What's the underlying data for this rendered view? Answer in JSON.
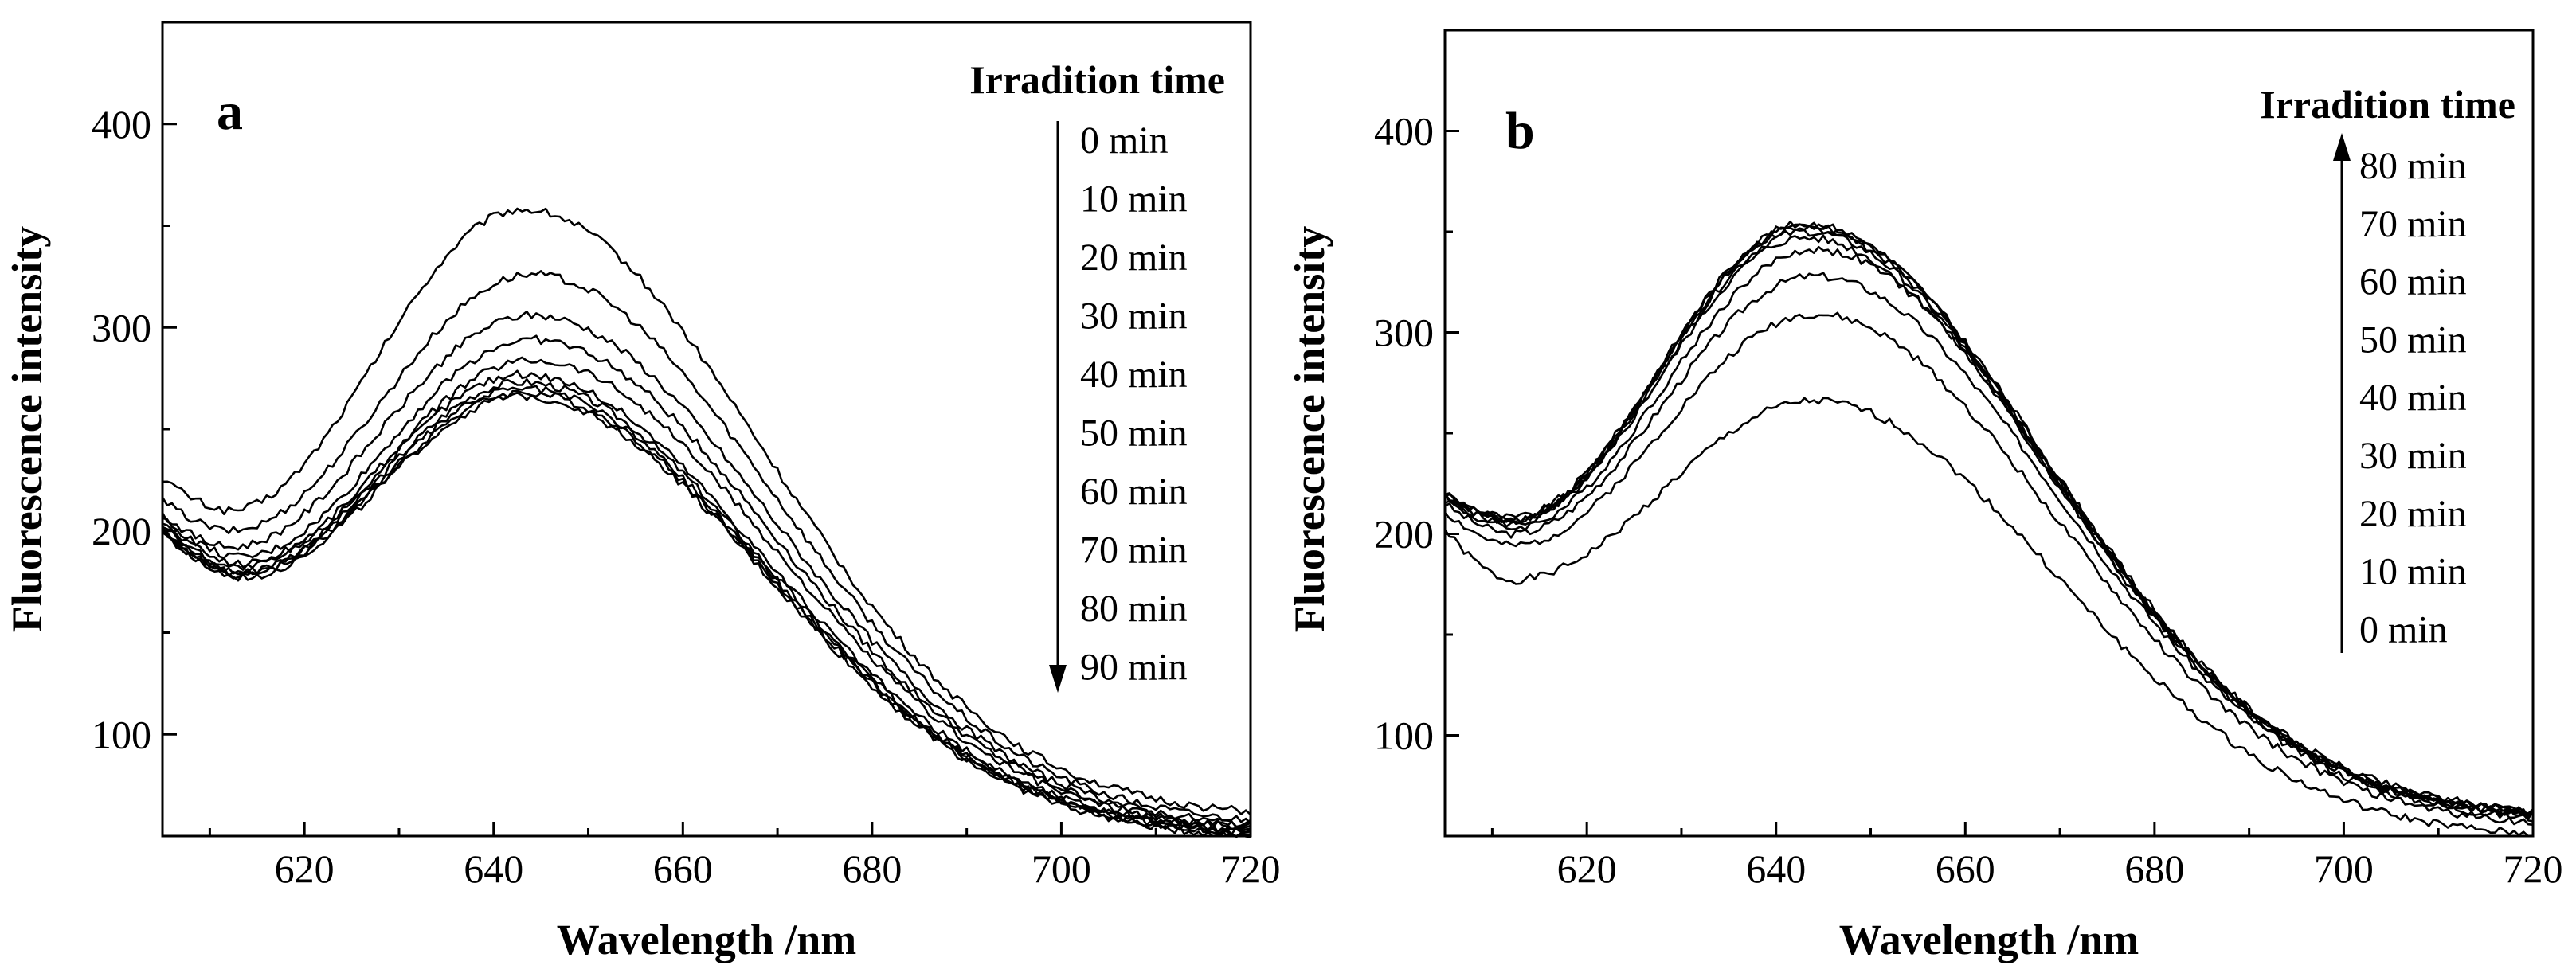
{
  "chart_data": [
    {
      "type": "line",
      "panel_label": "a",
      "xlabel": "Wavelength /nm",
      "ylabel": "Fluorescence intensity",
      "xlim": [
        605,
        720
      ],
      "ylim": [
        50,
        450
      ],
      "xticks": [
        620,
        640,
        660,
        680,
        700,
        720
      ],
      "yticks": [
        100,
        200,
        300,
        400
      ],
      "grid": false,
      "legend": {
        "title": "Irradition time",
        "items": [
          "0 min",
          "10 min",
          "20 min",
          "30 min",
          "40 min",
          "50 min",
          "60 min",
          "70 min",
          "80 min",
          "90 min"
        ],
        "arrow": "down"
      },
      "series": [
        {
          "name": "0 min",
          "peak_x": 643,
          "peak": 358,
          "start": 226,
          "min_x": 612,
          "min": 210,
          "end": 62
        },
        {
          "name": "10 min",
          "peak_x": 644,
          "peak": 326,
          "start": 215,
          "min_x": 612,
          "min": 200,
          "end": 58
        },
        {
          "name": "20 min",
          "peak_x": 644,
          "peak": 306,
          "start": 208,
          "min_x": 612,
          "min": 192,
          "end": 56
        },
        {
          "name": "30 min",
          "peak_x": 644,
          "peak": 294,
          "start": 206,
          "min_x": 613,
          "min": 187,
          "end": 55
        },
        {
          "name": "40 min",
          "peak_x": 644,
          "peak": 284,
          "start": 204,
          "min_x": 613,
          "min": 184,
          "end": 54
        },
        {
          "name": "50 min",
          "peak_x": 643,
          "peak": 277,
          "start": 203,
          "min_x": 613,
          "min": 182,
          "end": 53
        },
        {
          "name": "60 min",
          "peak_x": 643,
          "peak": 273,
          "start": 202,
          "min_x": 613,
          "min": 180,
          "end": 52
        },
        {
          "name": "70 min",
          "peak_x": 643,
          "peak": 270,
          "start": 201,
          "min_x": 613,
          "min": 179,
          "end": 52
        },
        {
          "name": "80 min",
          "peak_x": 643,
          "peak": 268,
          "start": 200,
          "min_x": 613,
          "min": 178,
          "end": 51
        },
        {
          "name": "90 min",
          "peak_x": 643,
          "peak": 266,
          "start": 199,
          "min_x": 613,
          "min": 177,
          "end": 50
        }
      ]
    },
    {
      "type": "line",
      "panel_label": "b",
      "xlabel": "Wavelength /nm",
      "ylabel": "Fluorescence intensity",
      "xlim": [
        605,
        720
      ],
      "ylim": [
        50,
        450
      ],
      "xticks": [
        620,
        640,
        660,
        680,
        700,
        720
      ],
      "yticks": [
        100,
        200,
        300,
        400
      ],
      "grid": false,
      "legend": {
        "title": "Irradition time",
        "items": [
          "80 min",
          "70 min",
          "60 min",
          "50 min",
          "40 min",
          "30 min",
          "20 min",
          "10 min",
          "0 min"
        ],
        "arrow": "up"
      },
      "series": [
        {
          "name": "0 min",
          "peak_x": 644,
          "peak": 266,
          "start": 202,
          "min_x": 612,
          "min": 177,
          "end": 51
        },
        {
          "name": "10 min",
          "peak_x": 644,
          "peak": 309,
          "start": 211,
          "min_x": 612,
          "min": 194,
          "end": 57
        },
        {
          "name": "20 min",
          "peak_x": 644,
          "peak": 328,
          "start": 215,
          "min_x": 612,
          "min": 200,
          "end": 59
        },
        {
          "name": "30 min",
          "peak_x": 644,
          "peak": 341,
          "start": 217,
          "min_x": 612,
          "min": 203,
          "end": 60
        },
        {
          "name": "40 min",
          "peak_x": 643,
          "peak": 347,
          "start": 218,
          "min_x": 612,
          "min": 205,
          "end": 61
        },
        {
          "name": "50 min",
          "peak_x": 643,
          "peak": 350,
          "start": 219,
          "min_x": 612,
          "min": 206,
          "end": 61
        },
        {
          "name": "60 min",
          "peak_x": 643,
          "peak": 352,
          "start": 219,
          "min_x": 612,
          "min": 207,
          "end": 62
        },
        {
          "name": "70 min",
          "peak_x": 643,
          "peak": 353,
          "start": 220,
          "min_x": 612,
          "min": 207,
          "end": 62
        },
        {
          "name": "80 min",
          "peak_x": 643,
          "peak": 354,
          "start": 220,
          "min_x": 612,
          "min": 208,
          "end": 63
        }
      ]
    }
  ]
}
